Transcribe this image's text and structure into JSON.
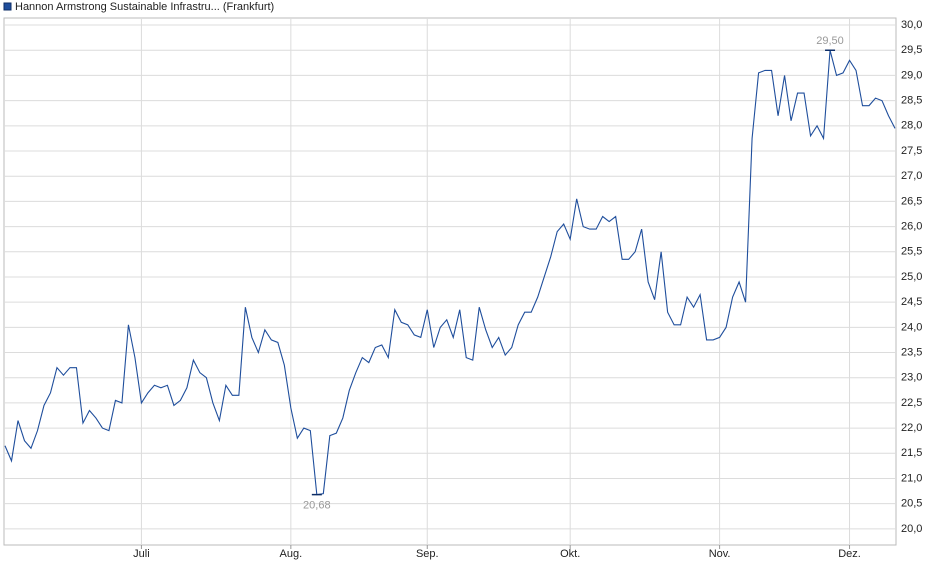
{
  "chart_data": {
    "type": "line",
    "legend_text": "Hannon Armstrong Sustainable Infrastru... (Frankfurt)",
    "categories": [
      null,
      null,
      null,
      null,
      null,
      null,
      null,
      null,
      null,
      null,
      null,
      null,
      null,
      null,
      null,
      null,
      null,
      null,
      null,
      null,
      null,
      "Juli",
      null,
      null,
      null,
      null,
      null,
      null,
      null,
      null,
      null,
      null,
      null,
      null,
      null,
      null,
      null,
      null,
      null,
      null,
      null,
      null,
      null,
      null,
      "Aug.",
      null,
      null,
      null,
      null,
      null,
      null,
      null,
      null,
      null,
      null,
      null,
      null,
      null,
      null,
      null,
      null,
      null,
      null,
      null,
      null,
      "Sep.",
      null,
      null,
      null,
      null,
      null,
      null,
      null,
      null,
      null,
      null,
      null,
      null,
      null,
      null,
      null,
      null,
      null,
      null,
      null,
      null,
      null,
      "Okt.",
      null,
      null,
      null,
      null,
      null,
      null,
      null,
      null,
      null,
      null,
      null,
      null,
      null,
      null,
      null,
      null,
      null,
      null,
      null,
      null,
      null,
      null,
      "Nov.",
      null,
      null,
      null,
      null,
      null,
      null,
      null,
      null,
      null,
      null,
      null,
      null,
      null,
      null,
      null,
      null,
      null,
      null,
      null,
      "Dez.",
      null,
      null,
      null,
      null,
      null,
      null,
      null
    ],
    "series": [
      {
        "name": "Hannon Armstrong Sustainable Infrastru... (Frankfurt)",
        "color": "#1f4e9c",
        "values": [
          21.65,
          21.35,
          22.15,
          21.75,
          21.6,
          21.95,
          22.45,
          22.7,
          23.2,
          23.05,
          23.2,
          23.2,
          22.1,
          22.35,
          22.2,
          22.0,
          21.95,
          22.55,
          22.5,
          24.05,
          23.4,
          22.5,
          22.7,
          22.85,
          22.8,
          22.85,
          22.45,
          22.55,
          22.8,
          23.35,
          23.1,
          23.0,
          22.5,
          22.15,
          22.85,
          22.65,
          22.65,
          24.4,
          23.8,
          23.5,
          23.95,
          23.75,
          23.7,
          23.25,
          22.4,
          21.8,
          22.0,
          21.95,
          20.68,
          20.7,
          21.85,
          21.9,
          22.2,
          22.75,
          23.1,
          23.4,
          23.3,
          23.6,
          23.65,
          23.4,
          24.35,
          24.1,
          24.05,
          23.85,
          23.8,
          24.35,
          23.6,
          24.0,
          24.15,
          23.8,
          24.35,
          23.4,
          23.35,
          24.4,
          23.95,
          23.6,
          23.8,
          23.45,
          23.6,
          24.05,
          24.3,
          24.3,
          24.6,
          25.0,
          25.4,
          25.9,
          26.05,
          25.75,
          26.55,
          26.0,
          25.95,
          25.95,
          26.2,
          26.1,
          26.2,
          25.35,
          25.35,
          25.5,
          25.95,
          24.9,
          24.55,
          25.5,
          24.3,
          24.05,
          24.05,
          24.6,
          24.4,
          24.65,
          23.75,
          23.75,
          23.8,
          24.0,
          24.6,
          24.9,
          24.5,
          27.75,
          29.05,
          29.1,
          29.1,
          28.2,
          29.0,
          28.1,
          28.65,
          28.65,
          27.8,
          28.0,
          27.75,
          29.5,
          29.0,
          29.05,
          29.3,
          29.1,
          28.4,
          28.4,
          28.55,
          28.5,
          28.2,
          27.95
        ]
      }
    ],
    "min_label": {
      "value": 20.68,
      "label": "20,68"
    },
    "max_label": {
      "value": 29.5,
      "label": "29,50"
    },
    "ylim": [
      19.68,
      30.14
    ],
    "yticks": [
      {
        "value": 20,
        "label": "20,0"
      },
      {
        "value": 20.5,
        "label": "20,5"
      },
      {
        "value": 21,
        "label": "21,0"
      },
      {
        "value": 21.5,
        "label": "21,5"
      },
      {
        "value": 22,
        "label": "22,0"
      },
      {
        "value": 22.5,
        "label": "22,5"
      },
      {
        "value": 23,
        "label": "23,0"
      },
      {
        "value": 23.5,
        "label": "23,5"
      },
      {
        "value": 24,
        "label": "24,0"
      },
      {
        "value": 24.5,
        "label": "24,5"
      },
      {
        "value": 25,
        "label": "25,0"
      },
      {
        "value": 25.5,
        "label": "25,5"
      },
      {
        "value": 26,
        "label": "26,0"
      },
      {
        "value": 26.5,
        "label": "26,5"
      },
      {
        "value": 27,
        "label": "27,0"
      },
      {
        "value": 27.5,
        "label": "27,5"
      },
      {
        "value": 28,
        "label": "28,0"
      },
      {
        "value": 28.5,
        "label": "28,5"
      },
      {
        "value": 29,
        "label": "29,0"
      },
      {
        "value": 29.5,
        "label": "29,5"
      },
      {
        "value": 30,
        "label": "30,0"
      }
    ],
    "grid": true
  }
}
